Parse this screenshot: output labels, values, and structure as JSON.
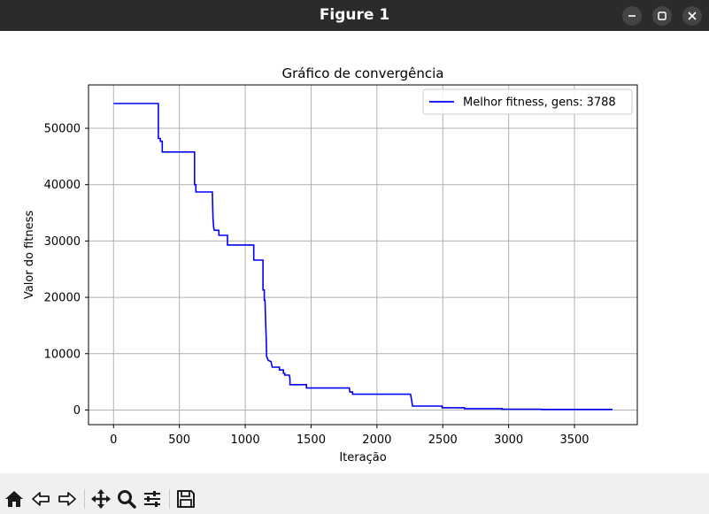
{
  "window": {
    "title": "Figure 1",
    "controls": [
      "minimize-icon",
      "maximize-icon",
      "close-icon"
    ]
  },
  "toolbar": {
    "buttons": [
      "home-icon",
      "back-arrow-icon",
      "forward-arrow-icon",
      "pan-icon",
      "zoom-icon",
      "configure-subplots-icon",
      "save-icon"
    ]
  },
  "chart_data": {
    "type": "line",
    "title": "Gráfico de convergência",
    "xlabel": "Iteração",
    "ylabel": "Valor do fitness",
    "xlim": [
      -190,
      3977
    ],
    "ylim": [
      -2600,
      57700
    ],
    "xticks": [
      0,
      500,
      1000,
      1500,
      2000,
      2500,
      3000,
      3500
    ],
    "yticks": [
      0,
      10000,
      20000,
      30000,
      40000,
      50000
    ],
    "grid": true,
    "legend_position": "upper right",
    "color": "#0000ff",
    "series": [
      {
        "name": "Melhor fitness, gens: 3788",
        "points": [
          [
            0,
            54400
          ],
          [
            340,
            54400
          ],
          [
            340,
            48200
          ],
          [
            355,
            48200
          ],
          [
            355,
            47700
          ],
          [
            370,
            47700
          ],
          [
            370,
            45800
          ],
          [
            615,
            45800
          ],
          [
            615,
            40000
          ],
          [
            625,
            40000
          ],
          [
            625,
            38700
          ],
          [
            750,
            38700
          ],
          [
            752,
            36500
          ],
          [
            755,
            34200
          ],
          [
            760,
            32500
          ],
          [
            765,
            31900
          ],
          [
            800,
            31900
          ],
          [
            800,
            31000
          ],
          [
            865,
            31000
          ],
          [
            865,
            29300
          ],
          [
            1065,
            29300
          ],
          [
            1065,
            26600
          ],
          [
            1135,
            26600
          ],
          [
            1135,
            21300
          ],
          [
            1145,
            21300
          ],
          [
            1145,
            19500
          ],
          [
            1150,
            19500
          ],
          [
            1155,
            15700
          ],
          [
            1160,
            12000
          ],
          [
            1162,
            9500
          ],
          [
            1175,
            8800
          ],
          [
            1195,
            8600
          ],
          [
            1205,
            7600
          ],
          [
            1260,
            7600
          ],
          [
            1260,
            7100
          ],
          [
            1290,
            7100
          ],
          [
            1290,
            6500
          ],
          [
            1300,
            6500
          ],
          [
            1300,
            6200
          ],
          [
            1335,
            6200
          ],
          [
            1340,
            5500
          ],
          [
            1340,
            4500
          ],
          [
            1465,
            4500
          ],
          [
            1465,
            3900
          ],
          [
            1790,
            3900
          ],
          [
            1795,
            3200
          ],
          [
            1815,
            3200
          ],
          [
            1815,
            2800
          ],
          [
            2255,
            2800
          ],
          [
            2265,
            1500
          ],
          [
            2270,
            700
          ],
          [
            2495,
            700
          ],
          [
            2495,
            400
          ],
          [
            2665,
            400
          ],
          [
            2665,
            250
          ],
          [
            2950,
            250
          ],
          [
            2950,
            150
          ],
          [
            3250,
            150
          ],
          [
            3250,
            100
          ],
          [
            3788,
            100
          ]
        ]
      }
    ]
  }
}
